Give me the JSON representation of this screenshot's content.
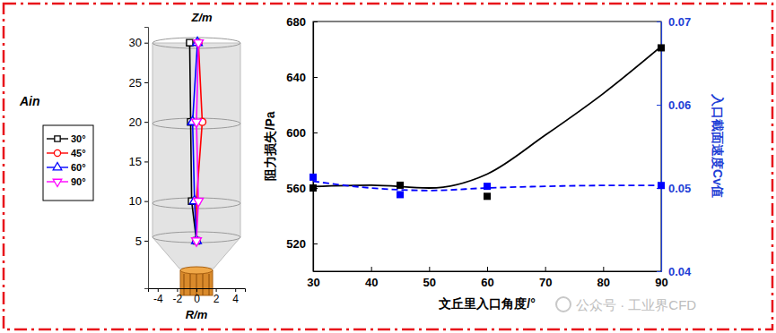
{
  "chart_data": [
    {
      "type": "line",
      "x_label": "R/m",
      "y_label": "Z/m",
      "legend_title": "Ain",
      "xlim": [
        -5,
        5
      ],
      "xticks": [
        -4,
        -2,
        0,
        2,
        4
      ],
      "ylim": [
        -1,
        32
      ],
      "yticks": [
        5,
        10,
        15,
        20,
        25,
        30
      ],
      "series": [
        {
          "name": "30°",
          "color": "#000000",
          "marker": "square",
          "x": [
            -0.7,
            -0.6,
            -0.5,
            0
          ],
          "values": [
            30,
            20,
            10,
            5
          ]
        },
        {
          "name": "45°",
          "color": "#ff0000",
          "marker": "circle",
          "x": [
            0.2,
            0.6,
            0,
            0
          ],
          "values": [
            30,
            20,
            10,
            5
          ]
        },
        {
          "name": "60°",
          "color": "#0000ff",
          "marker": "triangle-up",
          "x": [
            0.1,
            -0.4,
            -0.2,
            0
          ],
          "values": [
            30,
            20,
            10,
            5
          ]
        },
        {
          "name": "90°",
          "color": "#ff00ff",
          "marker": "triangle-down",
          "x": [
            0.2,
            0,
            0.2,
            0
          ],
          "values": [
            30,
            20,
            10,
            5
          ]
        }
      ]
    },
    {
      "type": "scatter",
      "x_label": "文丘里入口角度/°",
      "y_label": "阻力损失/Pa",
      "y2_label": "入口截面速度Cv值",
      "annotations": [
        "公众号 · 工业界CFD"
      ],
      "xlim": [
        30,
        90
      ],
      "xticks": [
        30,
        40,
        50,
        60,
        70,
        80,
        90
      ],
      "ylim": [
        500,
        680
      ],
      "yticks": [
        520,
        560,
        600,
        640,
        680
      ],
      "y2lim": [
        0.04,
        0.07
      ],
      "y2ticks": [
        0.04,
        0.05,
        0.06,
        0.07
      ],
      "series": [
        {
          "type": "scatter",
          "marker": "square",
          "color": "#000000",
          "x": [
            30,
            45,
            60,
            90
          ],
          "values": [
            560,
            562,
            554,
            661
          ]
        },
        {
          "type": "line",
          "line_style": "solid",
          "color": "#000000",
          "x": [
            30,
            40,
            50,
            60,
            70,
            80,
            90
          ],
          "values": [
            561,
            562,
            560,
            570,
            598,
            628,
            662
          ]
        },
        {
          "type": "scatter",
          "marker": "square",
          "color": "#0000ff",
          "axis": "y2",
          "x": [
            30,
            45,
            60,
            90
          ],
          "values": [
            0.0513,
            0.0492,
            0.0502,
            0.0503
          ]
        },
        {
          "type": "line",
          "line_style": "dashed",
          "color": "#0000ff",
          "axis": "y2",
          "x": [
            30,
            40,
            50,
            60,
            70,
            80,
            90
          ],
          "values": [
            0.0508,
            0.05,
            0.0497,
            0.05,
            0.0502,
            0.0503,
            0.0503
          ]
        }
      ]
    }
  ]
}
